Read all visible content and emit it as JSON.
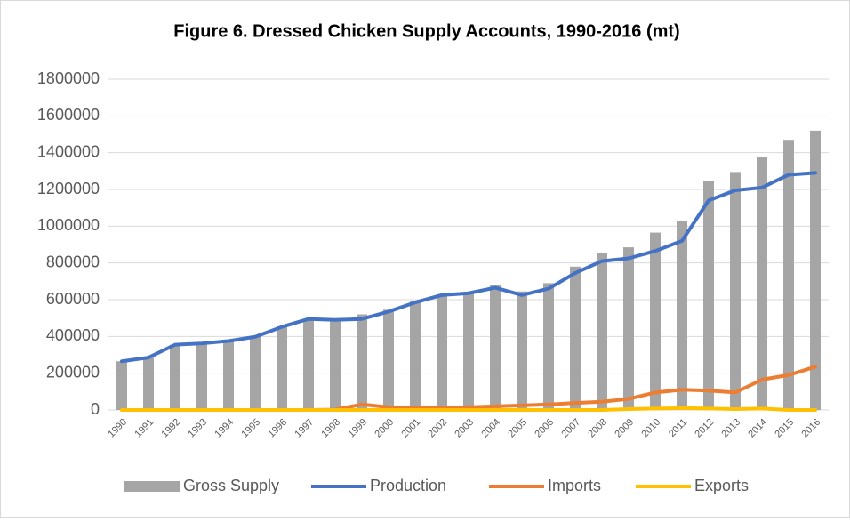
{
  "chart_data": {
    "type": "bar",
    "title": "Figure 6. Dressed Chicken Supply Accounts, 1990-2016 (mt)",
    "categories": [
      "1990",
      "1991",
      "1992",
      "1993",
      "1994",
      "1995",
      "1996",
      "1997",
      "1998",
      "1999",
      "2000",
      "2001",
      "2002",
      "2003",
      "2004",
      "2005",
      "2006",
      "2007",
      "2008",
      "2009",
      "2010",
      "2011",
      "2012",
      "2013",
      "2014",
      "2015",
      "2016"
    ],
    "series": [
      {
        "name": "Gross Supply",
        "type": "bar",
        "color": "#a5a5a5",
        "values": [
          265000,
          285000,
          355000,
          365000,
          375000,
          400000,
          455000,
          495000,
          495000,
          520000,
          545000,
          590000,
          630000,
          640000,
          680000,
          645000,
          690000,
          780000,
          855000,
          885000,
          965000,
          1030000,
          1245000,
          1295000,
          1375000,
          1470000,
          1520000
        ]
      },
      {
        "name": "Production",
        "type": "line",
        "color": "#4472c4",
        "values": [
          265000,
          285000,
          355000,
          362000,
          375000,
          398000,
          452000,
          495000,
          490000,
          495000,
          535000,
          585000,
          625000,
          635000,
          665000,
          625000,
          660000,
          745000,
          810000,
          825000,
          865000,
          920000,
          1140000,
          1195000,
          1210000,
          1280000,
          1290000
        ]
      },
      {
        "name": "Imports",
        "type": "line",
        "color": "#ed7d31",
        "values": [
          0,
          0,
          0,
          0,
          0,
          0,
          0,
          0,
          2000,
          30000,
          15000,
          10000,
          12000,
          15000,
          20000,
          25000,
          30000,
          38000,
          45000,
          60000,
          95000,
          110000,
          105000,
          95000,
          165000,
          190000,
          235000
        ]
      },
      {
        "name": "Exports",
        "type": "line",
        "color": "#ffc000",
        "values": [
          0,
          0,
          0,
          0,
          0,
          0,
          0,
          0,
          0,
          0,
          0,
          0,
          0,
          0,
          0,
          0,
          0,
          0,
          0,
          5000,
          8000,
          10000,
          8000,
          5000,
          8000,
          0,
          0
        ]
      }
    ],
    "ylim": [
      0,
      1800000
    ],
    "yticks": [
      0,
      200000,
      400000,
      600000,
      800000,
      1000000,
      1200000,
      1400000,
      1600000,
      1800000
    ],
    "grid": true,
    "legend": "bottom"
  }
}
